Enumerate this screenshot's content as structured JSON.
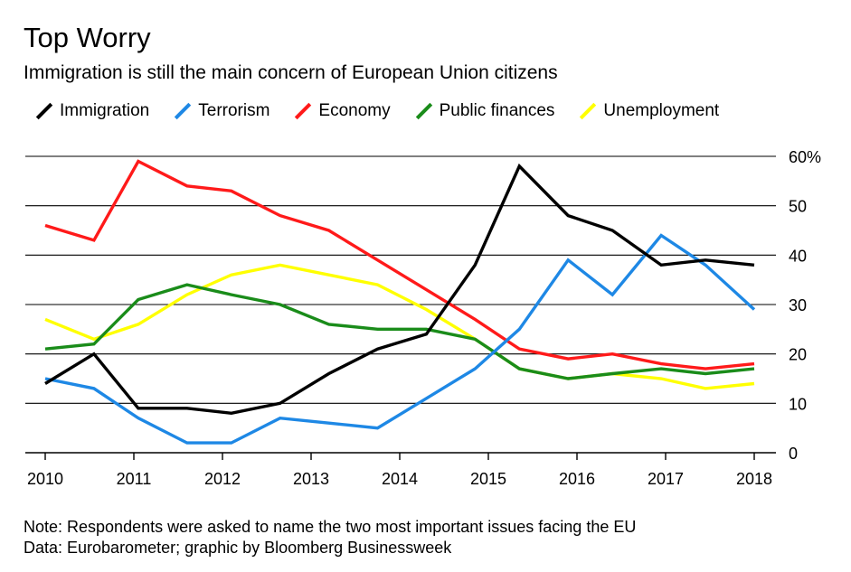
{
  "title": "Top Worry",
  "subtitle": "Immigration is still the main concern of European Union citizens",
  "note_line1": "Note: Respondents were asked to name the two most important issues facing the EU",
  "note_line2": "Data: Eurobarometer; graphic by Bloomberg Businessweek",
  "chart_data": {
    "type": "line",
    "xlim": [
      2010,
      2018
    ],
    "ylim": [
      0,
      60
    ],
    "y_ticks": [
      0,
      10,
      20,
      30,
      40,
      50,
      60
    ],
    "y_tick_labels": [
      "0",
      "10",
      "20",
      "30",
      "40",
      "50",
      "60%"
    ],
    "x_ticks": [
      2010,
      2011,
      2012,
      2013,
      2014,
      2015,
      2016,
      2017,
      2018
    ],
    "x_tick_labels": [
      "2010",
      "2011",
      "2012",
      "2013",
      "2014",
      "2015",
      "2016",
      "2017",
      "2018"
    ],
    "grid": true,
    "legend_position": "top-left",
    "x": [
      2010.0,
      2010.55,
      2011.05,
      2011.6,
      2012.1,
      2012.65,
      2013.2,
      2013.75,
      2014.3,
      2014.85,
      2015.35,
      2015.9,
      2016.4,
      2016.95,
      2017.45,
      2018.0
    ],
    "series": [
      {
        "name": "Immigration",
        "color": "#000000",
        "values": [
          14,
          20,
          9,
          9,
          8,
          10,
          16,
          21,
          24,
          38,
          58,
          48,
          45,
          38,
          39,
          38
        ]
      },
      {
        "name": "Terrorism",
        "color": "#1e88e5",
        "values": [
          15,
          13,
          7,
          2,
          2,
          7,
          6,
          5,
          11,
          17,
          25,
          39,
          32,
          44,
          38,
          29
        ]
      },
      {
        "name": "Economy",
        "color": "#ff1a1a",
        "values": [
          46,
          43,
          59,
          54,
          53,
          48,
          45,
          39,
          33,
          27,
          21,
          19,
          20,
          18,
          17,
          18
        ]
      },
      {
        "name": "Public finances",
        "color": "#1a8c1a",
        "values": [
          21,
          22,
          31,
          34,
          32,
          30,
          26,
          25,
          25,
          23,
          17,
          15,
          16,
          17,
          16,
          17
        ]
      },
      {
        "name": "Unemployment",
        "color": "#ffff00",
        "values": [
          27,
          23,
          26,
          32,
          36,
          38,
          36,
          34,
          29,
          23,
          17,
          15,
          16,
          15,
          13,
          14
        ]
      }
    ]
  }
}
